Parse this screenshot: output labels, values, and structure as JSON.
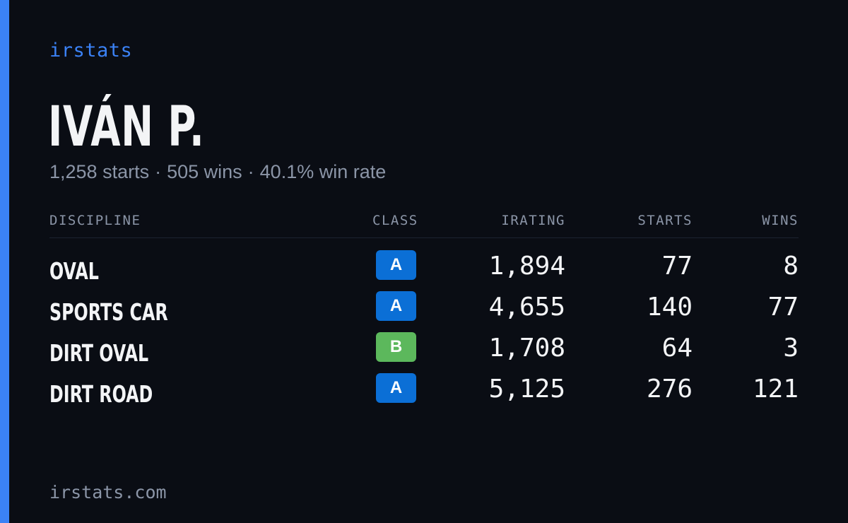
{
  "brand": "irstats",
  "driver": {
    "name": "IVÁN P.",
    "starts": "1,258 starts",
    "wins": "505 wins",
    "win_rate": "40.1% win rate",
    "separator": "·"
  },
  "table": {
    "headers": {
      "discipline": "DISCIPLINE",
      "class": "CLASS",
      "irating": "IRATING",
      "starts": "STARTS",
      "wins": "WINS"
    },
    "rows": [
      {
        "discipline": "OVAL",
        "class": "A",
        "class_color": "#0b6fd6",
        "irating": "1,894",
        "starts": "77",
        "wins": "8"
      },
      {
        "discipline": "SPORTS CAR",
        "class": "A",
        "class_color": "#0b6fd6",
        "irating": "4,655",
        "starts": "140",
        "wins": "77"
      },
      {
        "discipline": "DIRT OVAL",
        "class": "B",
        "class_color": "#5cb85c",
        "irating": "1,708",
        "starts": "64",
        "wins": "3"
      },
      {
        "discipline": "DIRT ROAD",
        "class": "A",
        "class_color": "#0b6fd6",
        "irating": "5,125",
        "starts": "276",
        "wins": "121"
      }
    ]
  },
  "footer": "irstats.com",
  "colors": {
    "background": "#0a0d14",
    "accent": "#3b82f6",
    "muted_text": "#8b95a7",
    "primary_text": "#f3f4f6"
  }
}
